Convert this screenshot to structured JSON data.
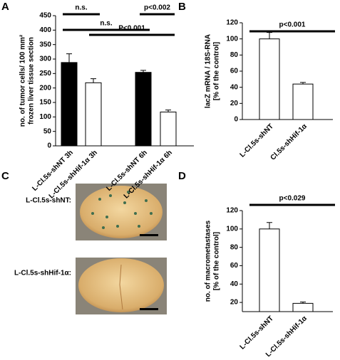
{
  "panels": [
    "A",
    "B",
    "C",
    "D"
  ],
  "photos": {
    "labels": [
      "L-Cl.5s-shNT:",
      "L-Cl.5s-shHif-1α:"
    ]
  },
  "chart_data": [
    {
      "type": "bar",
      "ylabel": [
        "no. of tumor cells/ 100 mm² ",
        "frozen liver tissue section"
      ],
      "categories": [
        "L-Cl.5s-shNT 3h",
        "L-Cl.5s-shHif-1α 3h",
        "L-Cl.5s-shNT 6h",
        "L-Cl.5s-shHif-1α 6h"
      ],
      "values": [
        288,
        218,
        254,
        117
      ],
      "errors": [
        30,
        14,
        7,
        7
      ],
      "colors": [
        "#000000",
        "#ffffff",
        "#000000",
        "#ffffff"
      ],
      "ylim": [
        0,
        450
      ],
      "yticks": [
        0,
        50,
        100,
        150,
        200,
        250,
        300,
        350,
        400,
        450
      ],
      "annotations": [
        "n.s.",
        "n.s.",
        "p<0.002",
        "P<0.001"
      ]
    },
    {
      "type": "bar",
      "ylabel": [
        "lacZ mRNA / 18S-RNA",
        "[% of the control]"
      ],
      "categories": [
        "L-Cl.5s-shNT",
        "Cl.5s-shHif-1α"
      ],
      "values": [
        100,
        44
      ],
      "errors": [
        8,
        2
      ],
      "colors": [
        "#ffffff",
        "#ffffff"
      ],
      "ylim": [
        0,
        120
      ],
      "yticks": [
        0,
        20,
        40,
        60,
        80,
        100,
        120
      ],
      "annotations": [
        "p<0.001"
      ]
    },
    {
      "type": "bar",
      "ylabel": [
        "no. of macrometastases",
        "[% of the control]"
      ],
      "categories": [
        "L-Cl.5s-shNT",
        "L-Cl.5s-shHif-1α"
      ],
      "values": [
        100,
        19
      ],
      "errors": [
        7,
        1.5
      ],
      "colors": [
        "#ffffff",
        "#ffffff"
      ],
      "ylim": [
        10,
        120
      ],
      "yticks": [
        20,
        40,
        60,
        80,
        100,
        120
      ],
      "annotations": [
        "p<0.029"
      ]
    }
  ]
}
